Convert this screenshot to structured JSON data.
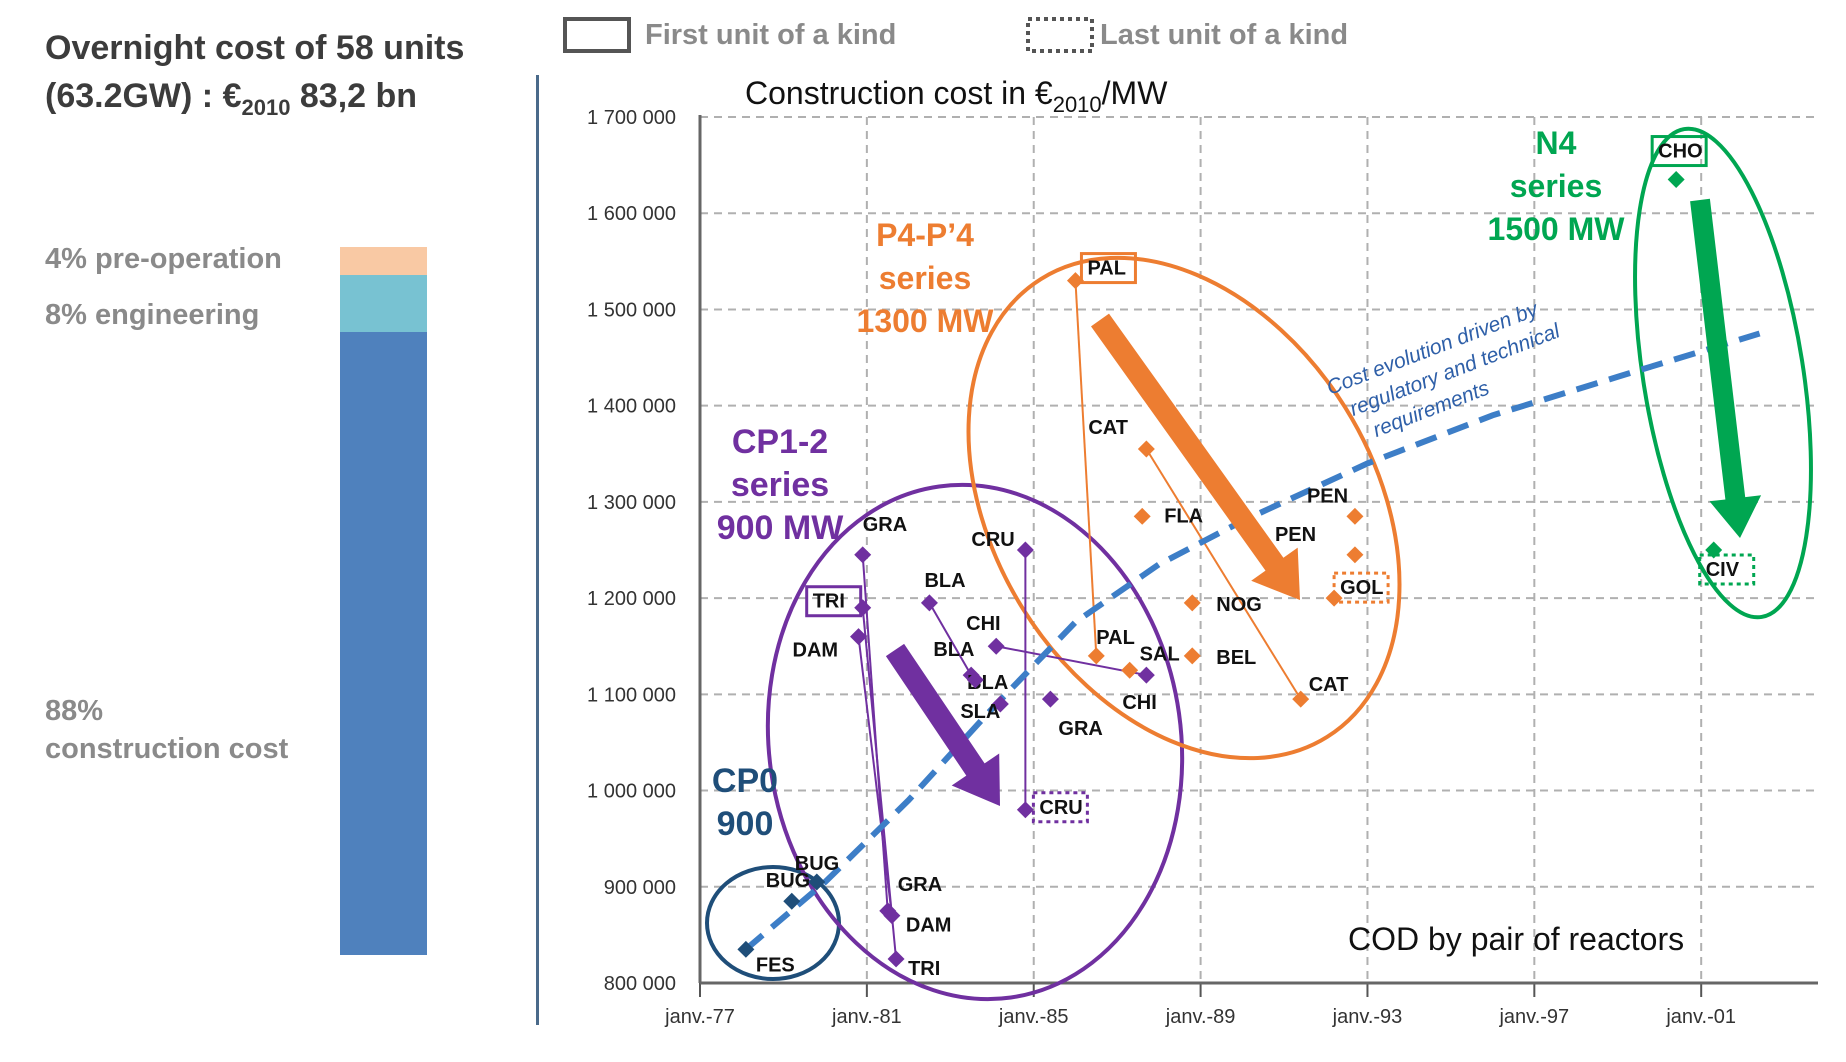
{
  "left_panel": {
    "title_line1": "Overnight cost of 58 units",
    "title_line2_prefix": "(63.2GW) : €",
    "title_line2_sub": "2010",
    "title_line2_suffix": " 83,2 bn",
    "shares": [
      {
        "label": "4% pre-operation",
        "value": 4,
        "color": "#f9c9a4"
      },
      {
        "label": "8% engineering",
        "value": 8,
        "color": "#78c2d2"
      },
      {
        "label": "88%",
        "label2": "construction cost",
        "value": 88,
        "color": "#4f81bd"
      }
    ]
  },
  "legend": {
    "first": "First unit of a kind",
    "last": "Last unit of a kind"
  },
  "chart_data": {
    "type": "scatter",
    "title_prefix": "Construction cost in €",
    "title_sub": "2010",
    "title_suffix": "/MW",
    "xlabel": "COD by pair of reactors",
    "ylabel": "",
    "xlim": [
      1977.0,
      2003.8
    ],
    "ylim": [
      800000,
      1700000
    ],
    "x_ticks": [
      {
        "x": 1977.0,
        "label": "janv.-77"
      },
      {
        "x": 1981.0,
        "label": "janv.-81"
      },
      {
        "x": 1985.0,
        "label": "janv.-85"
      },
      {
        "x": 1989.0,
        "label": "janv.-89"
      },
      {
        "x": 1993.0,
        "label": "janv.-93"
      },
      {
        "x": 1997.0,
        "label": "janv.-97"
      },
      {
        "x": 2001.0,
        "label": "janv.-01"
      }
    ],
    "y_ticks": [
      {
        "y": 800000,
        "label": "800 000"
      },
      {
        "y": 900000,
        "label": "900 000"
      },
      {
        "y": 1000000,
        "label": "1 000 000"
      },
      {
        "y": 1100000,
        "label": "1 100 000"
      },
      {
        "y": 1200000,
        "label": "1 200 000"
      },
      {
        "y": 1300000,
        "label": "1 300 000"
      },
      {
        "y": 1400000,
        "label": "1 400 000"
      },
      {
        "y": 1500000,
        "label": "1 500 000"
      },
      {
        "y": 1600000,
        "label": "1 600 000"
      },
      {
        "y": 1700000,
        "label": "1 700 000"
      }
    ],
    "series": [
      {
        "name": "CP0 900",
        "name_lines": [
          "CP0",
          "900"
        ],
        "color": "#1f4e79",
        "points": [
          {
            "x": 1978.1,
            "y": 835000,
            "label": "FES"
          },
          {
            "x": 1979.2,
            "y": 885000,
            "label": "BUG"
          },
          {
            "x": 1979.8,
            "y": 905000,
            "label": "BUG"
          }
        ]
      },
      {
        "name": "CP1-2 series 900 MW",
        "name_lines": [
          "CP1-2",
          "series",
          "900 MW"
        ],
        "color": "#7030a0",
        "points": [
          {
            "x": 1980.9,
            "y": 1245000,
            "label": "GRA"
          },
          {
            "x": 1980.9,
            "y": 1190000,
            "label": "TRI",
            "first": true
          },
          {
            "x": 1980.8,
            "y": 1160000,
            "label": "DAM"
          },
          {
            "x": 1981.5,
            "y": 875000,
            "label": "GRA"
          },
          {
            "x": 1981.6,
            "y": 870000,
            "label": "DAM"
          },
          {
            "x": 1981.7,
            "y": 825000,
            "label": "TRI"
          },
          {
            "x": 1982.5,
            "y": 1195000,
            "label": "BLA"
          },
          {
            "x": 1983.5,
            "y": 1120000,
            "label": "BLA"
          },
          {
            "x": 1983.6,
            "y": 1115000,
            "label": "BLA"
          },
          {
            "x": 1984.1,
            "y": 1150000,
            "label": "CHI"
          },
          {
            "x": 1987.7,
            "y": 1120000,
            "label": "CHI"
          },
          {
            "x": 1984.8,
            "y": 1250000,
            "label": "CRU"
          },
          {
            "x": 1984.8,
            "y": 980000,
            "label": "CRU",
            "last": true
          },
          {
            "x": 1984.2,
            "y": 1090000,
            "label": "SLA"
          },
          {
            "x": 1985.4,
            "y": 1095000,
            "label": "GRA"
          }
        ]
      },
      {
        "name": "P4-P'4 series 1300 MW",
        "name_lines": [
          "P4-P’4",
          "series",
          "1300 MW"
        ],
        "color": "#ed7d31",
        "points": [
          {
            "x": 1986.0,
            "y": 1530000,
            "label": "PAL",
            "first": true
          },
          {
            "x": 1987.7,
            "y": 1355000,
            "label": "CAT"
          },
          {
            "x": 1987.6,
            "y": 1285000,
            "label": "FLA"
          },
          {
            "x": 1986.5,
            "y": 1140000,
            "label": "PAL"
          },
          {
            "x": 1987.3,
            "y": 1125000,
            "label": "SAL"
          },
          {
            "x": 1988.8,
            "y": 1195000,
            "label": "NOG"
          },
          {
            "x": 1988.8,
            "y": 1140000,
            "label": "BEL"
          },
          {
            "x": 1991.4,
            "y": 1095000,
            "label": "CAT"
          },
          {
            "x": 1992.7,
            "y": 1285000,
            "label": "PEN"
          },
          {
            "x": 1992.7,
            "y": 1245000,
            "label": "PEN"
          },
          {
            "x": 1992.2,
            "y": 1200000,
            "label": "GOL",
            "last": true
          }
        ]
      },
      {
        "name": "N4 series 1500 MW",
        "name_lines": [
          "N4",
          "series",
          "1500 MW"
        ],
        "color": "#00a651",
        "points": [
          {
            "x": 2000.4,
            "y": 1635000,
            "label": "CHO",
            "first": true
          },
          {
            "x": 2001.3,
            "y": 1250000,
            "label": "CIV",
            "last": true
          }
        ]
      }
    ],
    "trend_annotation": [
      "Cost evolution driven by",
      "regulatory and technical",
      "requirements"
    ]
  }
}
